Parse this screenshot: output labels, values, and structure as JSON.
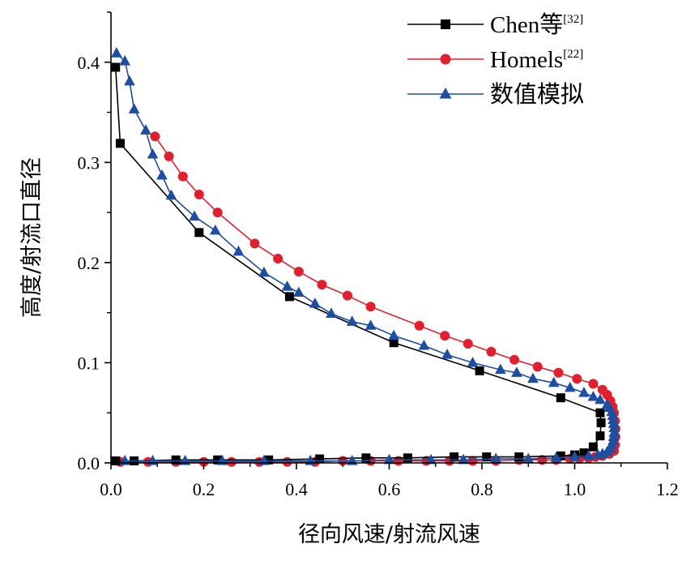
{
  "chart_data": {
    "type": "line",
    "xlabel": "径向风速/射流风速",
    "ylabel": "高度/射流口直径",
    "xlim": [
      0.0,
      1.2
    ],
    "ylim": [
      0.0,
      0.45
    ],
    "x_ticks": [
      "0.0",
      "0.2",
      "0.4",
      "0.6",
      "0.8",
      "1.0",
      "1.2"
    ],
    "y_ticks": [
      "0.0",
      "0.1",
      "0.2",
      "0.3",
      "0.4"
    ],
    "grid": false,
    "legend_position": "top-right",
    "series": [
      {
        "name": "Chen等",
        "ref": "[32]",
        "color": "#000000",
        "marker": "square",
        "points": [
          [
            0.01,
            0.395
          ],
          [
            0.02,
            0.319
          ],
          [
            0.19,
            0.23
          ],
          [
            0.385,
            0.166
          ],
          [
            0.61,
            0.12
          ],
          [
            0.795,
            0.092
          ],
          [
            0.97,
            0.065
          ],
          [
            1.055,
            0.05
          ],
          [
            1.057,
            0.04
          ],
          [
            1.055,
            0.027
          ],
          [
            1.04,
            0.016
          ],
          [
            1.02,
            0.01
          ],
          [
            1.0,
            0.008
          ],
          [
            0.97,
            0.007
          ],
          [
            0.88,
            0.006
          ],
          [
            0.81,
            0.006
          ],
          [
            0.74,
            0.006
          ],
          [
            0.64,
            0.005
          ],
          [
            0.55,
            0.005
          ],
          [
            0.45,
            0.004
          ],
          [
            0.34,
            0.003
          ],
          [
            0.23,
            0.003
          ],
          [
            0.14,
            0.003
          ],
          [
            0.05,
            0.002
          ],
          [
            0.01,
            0.002
          ]
        ]
      },
      {
        "name": "Homels",
        "ref": "[22]",
        "color": "#e0202e",
        "marker": "circle",
        "points": [
          [
            0.095,
            0.326
          ],
          [
            0.125,
            0.306
          ],
          [
            0.155,
            0.286
          ],
          [
            0.19,
            0.268
          ],
          [
            0.23,
            0.25
          ],
          [
            0.31,
            0.219
          ],
          [
            0.36,
            0.204
          ],
          [
            0.405,
            0.191
          ],
          [
            0.455,
            0.178
          ],
          [
            0.51,
            0.167
          ],
          [
            0.56,
            0.156
          ],
          [
            0.665,
            0.137
          ],
          [
            0.72,
            0.127
          ],
          [
            0.77,
            0.119
          ],
          [
            0.82,
            0.111
          ],
          [
            0.87,
            0.103
          ],
          [
            0.92,
            0.096
          ],
          [
            0.965,
            0.09
          ],
          [
            1.005,
            0.084
          ],
          [
            1.04,
            0.079
          ],
          [
            1.06,
            0.073
          ],
          [
            1.07,
            0.068
          ],
          [
            1.077,
            0.062
          ],
          [
            1.082,
            0.056
          ],
          [
            1.085,
            0.05
          ],
          [
            1.087,
            0.042
          ],
          [
            1.088,
            0.034
          ],
          [
            1.088,
            0.026
          ],
          [
            1.087,
            0.018
          ],
          [
            1.085,
            0.012
          ],
          [
            1.075,
            0.009
          ],
          [
            1.06,
            0.007
          ],
          [
            1.045,
            0.006
          ],
          [
            1.03,
            0.005
          ],
          [
            1.01,
            0.004
          ],
          [
            0.99,
            0.004
          ],
          [
            0.96,
            0.003
          ],
          [
            0.93,
            0.003
          ],
          [
            0.88,
            0.003
          ],
          [
            0.83,
            0.002
          ],
          [
            0.78,
            0.002
          ],
          [
            0.73,
            0.002
          ],
          [
            0.68,
            0.002
          ],
          [
            0.62,
            0.002
          ],
          [
            0.56,
            0.002
          ],
          [
            0.5,
            0.002
          ],
          [
            0.44,
            0.001
          ],
          [
            0.38,
            0.001
          ],
          [
            0.32,
            0.001
          ],
          [
            0.26,
            0.001
          ],
          [
            0.2,
            0.001
          ],
          [
            0.14,
            0.001
          ],
          [
            0.08,
            0.001
          ],
          [
            0.02,
            0.001
          ]
        ]
      },
      {
        "name": "数值模拟",
        "ref": "",
        "color": "#1e4ea0",
        "marker": "triangle",
        "points": [
          [
            0.012,
            0.409
          ],
          [
            0.03,
            0.401
          ],
          [
            0.04,
            0.381
          ],
          [
            0.05,
            0.353
          ],
          [
            0.075,
            0.332
          ],
          [
            0.09,
            0.308
          ],
          [
            0.11,
            0.287
          ],
          [
            0.13,
            0.267
          ],
          [
            0.18,
            0.246
          ],
          [
            0.225,
            0.232
          ],
          [
            0.275,
            0.211
          ],
          [
            0.33,
            0.19
          ],
          [
            0.38,
            0.176
          ],
          [
            0.405,
            0.17
          ],
          [
            0.44,
            0.159
          ],
          [
            0.475,
            0.149
          ],
          [
            0.52,
            0.141
          ],
          [
            0.56,
            0.137
          ],
          [
            0.61,
            0.127
          ],
          [
            0.675,
            0.117
          ],
          [
            0.725,
            0.108
          ],
          [
            0.78,
            0.1
          ],
          [
            0.84,
            0.093
          ],
          [
            0.875,
            0.09
          ],
          [
            0.91,
            0.084
          ],
          [
            0.955,
            0.08
          ],
          [
            0.99,
            0.075
          ],
          [
            1.02,
            0.07
          ],
          [
            1.04,
            0.066
          ],
          [
            1.055,
            0.063
          ],
          [
            1.07,
            0.058
          ],
          [
            1.075,
            0.055
          ],
          [
            1.08,
            0.051
          ],
          [
            1.082,
            0.047
          ],
          [
            1.083,
            0.043
          ],
          [
            1.084,
            0.039
          ],
          [
            1.085,
            0.035
          ],
          [
            1.085,
            0.03
          ],
          [
            1.084,
            0.026
          ],
          [
            1.083,
            0.022
          ],
          [
            1.08,
            0.018
          ],
          [
            1.077,
            0.014
          ],
          [
            1.07,
            0.011
          ],
          [
            1.06,
            0.009
          ],
          [
            1.05,
            0.008
          ],
          [
            1.03,
            0.007
          ],
          [
            1.0,
            0.006
          ],
          [
            0.96,
            0.005
          ],
          [
            0.9,
            0.004
          ],
          [
            0.83,
            0.004
          ],
          [
            0.76,
            0.003
          ],
          [
            0.69,
            0.003
          ],
          [
            0.6,
            0.003
          ],
          [
            0.52,
            0.002
          ],
          [
            0.43,
            0.002
          ],
          [
            0.33,
            0.002
          ],
          [
            0.24,
            0.002
          ],
          [
            0.16,
            0.002
          ],
          [
            0.09,
            0.002
          ],
          [
            0.03,
            0.002
          ]
        ]
      }
    ]
  }
}
